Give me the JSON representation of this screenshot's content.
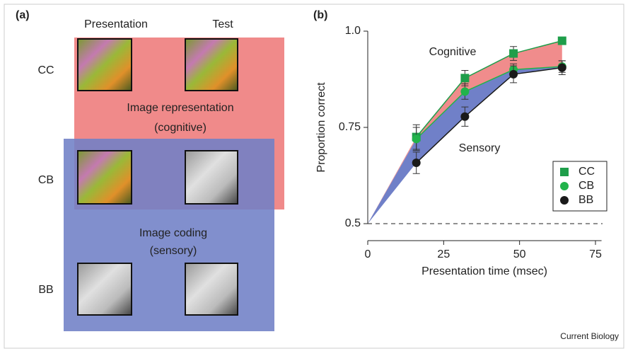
{
  "panel_a": {
    "label": "(a)",
    "columns": [
      "Presentation",
      "Test"
    ],
    "rows": [
      "CC",
      "CB",
      "BB"
    ],
    "cognitive_box": [
      "Image representation",
      "(cognitive)"
    ],
    "sensory_box": [
      "Image coding",
      "(sensory)"
    ]
  },
  "panel_b_label": "(b)",
  "credit": "Current Biology",
  "chart_data": {
    "type": "line",
    "x_label": "Presentation time (msec)",
    "y_label": "Proportion correct",
    "x": [
      16,
      32,
      48,
      64
    ],
    "series": [
      {
        "name": "CC",
        "color": "#1e9e4a",
        "marker": "square",
        "values": [
          0.725,
          0.878,
          0.942,
          0.975
        ],
        "errors": [
          0.032,
          0.02,
          0.018,
          0.008
        ]
      },
      {
        "name": "CB",
        "color": "#22b34b",
        "marker": "circle",
        "values": [
          0.72,
          0.843,
          0.9,
          0.908
        ],
        "errors": [
          0.03,
          0.02,
          0.015,
          0.015
        ]
      },
      {
        "name": "BB",
        "color": "#1a1a1a",
        "marker": "circle",
        "values": [
          0.658,
          0.778,
          0.888,
          0.905
        ],
        "errors": [
          0.028,
          0.025,
          0.022,
          0.018
        ]
      }
    ],
    "annotations": [
      {
        "text": "Cognitive",
        "color": "#f08c8c"
      },
      {
        "text": "Sensory",
        "color": "#7080c8"
      }
    ],
    "xlim": [
      0,
      77
    ],
    "ylim": [
      0.5,
      1.0
    ],
    "xticks": [
      0,
      25,
      50,
      75
    ],
    "yticks": [
      0.5,
      0.75,
      {
        "value": 1.0,
        "label": "1.0"
      }
    ],
    "legend": "lower right"
  }
}
